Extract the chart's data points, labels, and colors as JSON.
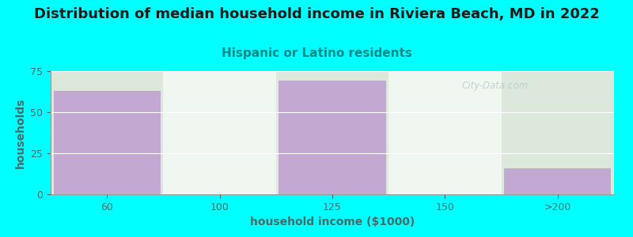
{
  "title": "Distribution of median household income in Riviera Beach, MD in 2022",
  "subtitle": "Hispanic or Latino residents",
  "xlabel": "household income ($1000)",
  "ylabel": "households",
  "background_color": "#00FFFF",
  "plot_bg_color": "#e8f5e8",
  "bar_color": "#c3a8d1",
  "categories": [
    "60",
    "100",
    "125",
    "150",
    ">200"
  ],
  "values": [
    63,
    0,
    69,
    0,
    16
  ],
  "ylim": [
    0,
    75
  ],
  "yticks": [
    0,
    25,
    50,
    75
  ],
  "title_fontsize": 13,
  "subtitle_fontsize": 11,
  "subtitle_color": "#008B8B",
  "axis_label_fontsize": 10,
  "tick_fontsize": 9,
  "title_color": "#1a1a1a",
  "tick_color": "#4a6a6a",
  "watermark": "City-Data.com",
  "col_colors": [
    "#c3a8d1",
    "#e8f5e8",
    "#c3a8d1",
    "#e8f5e8",
    "#c3a8d1"
  ],
  "col_bg_colors": [
    "#dce8dc",
    "#f0f7f0",
    "#dce8dc",
    "#f0f7f0",
    "#dce8dc"
  ]
}
